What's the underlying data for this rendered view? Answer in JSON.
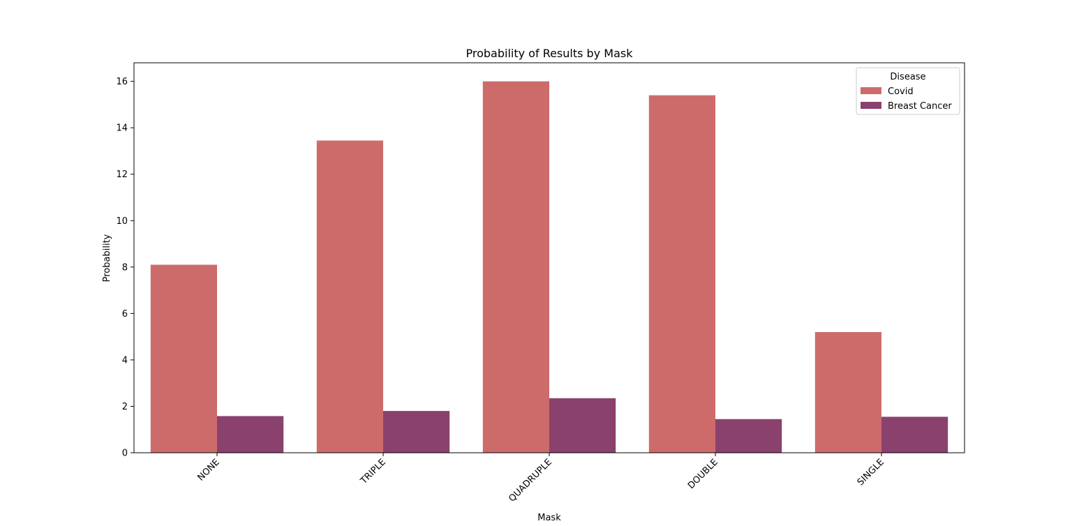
{
  "chart_data": {
    "type": "bar",
    "title": "Probability of Results by Mask",
    "xlabel": "Mask",
    "ylabel": "Probability",
    "categories": [
      "NONE",
      "TRIPLE",
      "QUADRUPLE",
      "DOUBLE",
      "SINGLE"
    ],
    "series": [
      {
        "name": "Covid",
        "color": "#cd6b6b",
        "values": [
          8.1,
          13.45,
          16.0,
          15.4,
          5.2
        ]
      },
      {
        "name": "Breast Cancer",
        "color": "#8b416d",
        "values": [
          1.58,
          1.8,
          2.35,
          1.45,
          1.55
        ]
      }
    ],
    "ylim": [
      0,
      16.8
    ],
    "yticks": [
      0,
      2,
      4,
      6,
      8,
      10,
      12,
      14,
      16
    ],
    "grid": false,
    "legend": {
      "title": "Disease",
      "position": "top-right"
    }
  }
}
